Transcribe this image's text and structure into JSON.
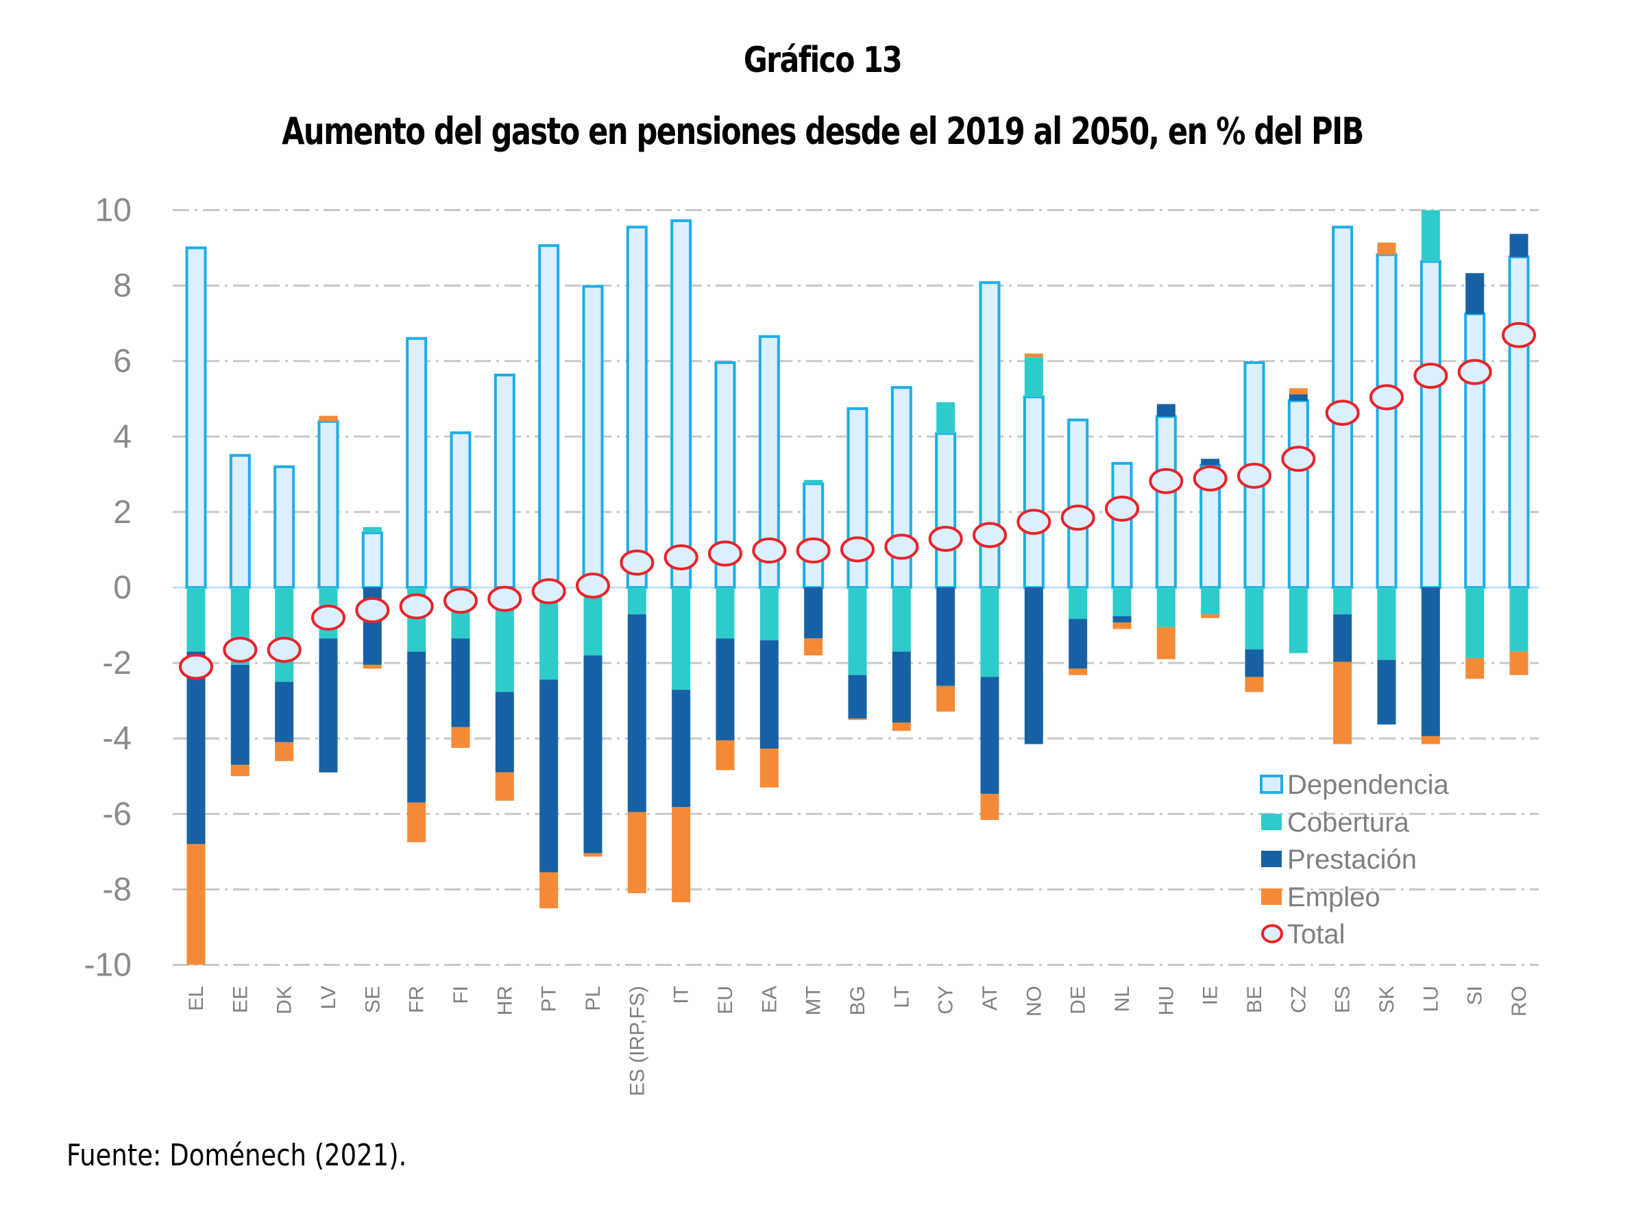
{
  "figure": {
    "label": "Gráfico 13",
    "title": "Aumento del gasto en pensiones desde el 2019 al 2050, en % del PIB",
    "source": "Fuente: Doménech (2021)."
  },
  "colors": {
    "dependencia_fill": "#dcefff",
    "dependencia_stroke": "#1aaee8",
    "cobertura": "#2ecbcb",
    "prestacion": "#1762a5",
    "empleo": "#f58a36",
    "total_stroke": "#e8232a",
    "total_fill": "#dcefff",
    "grid": "#c8c8c8",
    "zero_line": "#bfe0fb"
  },
  "chart_data": {
    "type": "bar",
    "stacked": true,
    "title": "Aumento del gasto en pensiones desde el 2019 al 2050, en % del PIB",
    "xlabel": "",
    "ylabel": "",
    "ylim": [
      -10,
      10
    ],
    "yticks": [
      10,
      8,
      6,
      4,
      2,
      0,
      -2,
      -4,
      -6,
      -8,
      -10
    ],
    "grid": true,
    "legend_position": "bottom-right",
    "categories": [
      "EL",
      "EE",
      "DK",
      "LV",
      "SE",
      "FR",
      "FI",
      "HR",
      "PT",
      "PL",
      "ES (IRP,FS)",
      "IT",
      "EU",
      "EA",
      "MT",
      "BG",
      "LT",
      "CY",
      "AT",
      "NO",
      "DE",
      "NL",
      "HU",
      "IE",
      "BE",
      "CZ",
      "ES",
      "SK",
      "LU",
      "SI",
      "RO"
    ],
    "series": [
      {
        "name": "Dependencia",
        "kind": "bar",
        "values": [
          9.0,
          3.5,
          3.2,
          4.4,
          1.45,
          6.6,
          4.1,
          5.63,
          9.06,
          7.98,
          9.55,
          9.72,
          5.96,
          6.65,
          2.75,
          4.74,
          5.3,
          4.08,
          8.08,
          5.05,
          4.44,
          3.29,
          4.53,
          3.24,
          5.96,
          4.95,
          9.55,
          8.82,
          8.64,
          7.25,
          8.76
        ]
      },
      {
        "name": "Cobertura",
        "kind": "bar",
        "values": [
          -1.7,
          -2.05,
          -2.5,
          -1.35,
          0.15,
          -1.7,
          -1.35,
          -2.77,
          -2.44,
          -1.8,
          -0.71,
          -2.71,
          -1.35,
          -1.4,
          0.1,
          -2.32,
          -1.7,
          0.83,
          -2.37,
          1.05,
          -0.83,
          -0.76,
          -1.05,
          -0.71,
          -1.64,
          -1.74,
          -0.71,
          -1.92,
          1.36,
          -1.87,
          -1.7
        ]
      },
      {
        "name": "Prestación",
        "kind": "bar",
        "values": [
          -5.1,
          -2.65,
          -1.6,
          -3.55,
          -2.05,
          -4.0,
          -2.35,
          -2.13,
          -5.11,
          -5.24,
          -5.24,
          -3.11,
          -2.7,
          -2.87,
          -1.35,
          -1.15,
          -1.88,
          -2.61,
          -3.1,
          -4.15,
          -1.32,
          -0.17,
          0.33,
          0.17,
          -0.73,
          0.17,
          -1.26,
          -1.71,
          -3.94,
          1.08,
          0.61
        ]
      },
      {
        "name": "Empleo",
        "kind": "bar",
        "values": [
          -3.3,
          -0.3,
          -0.5,
          0.15,
          -0.1,
          -1.05,
          -0.55,
          -0.75,
          -0.95,
          -0.09,
          -2.15,
          -2.52,
          -0.79,
          -1.03,
          -0.45,
          -0.04,
          -0.22,
          -0.68,
          -0.69,
          0.1,
          -0.17,
          -0.17,
          -0.85,
          -0.1,
          -0.4,
          0.16,
          -2.18,
          0.32,
          -0.21,
          -0.55,
          -0.62
        ]
      },
      {
        "name": "Total",
        "kind": "marker",
        "values": [
          -2.1,
          -1.65,
          -1.65,
          -0.8,
          -0.6,
          -0.5,
          -0.35,
          -0.3,
          -0.1,
          0.05,
          0.66,
          0.8,
          0.9,
          0.98,
          0.98,
          1.01,
          1.08,
          1.29,
          1.39,
          1.74,
          1.85,
          2.09,
          2.82,
          2.89,
          2.96,
          3.41,
          4.63,
          5.04,
          5.61,
          5.71,
          6.69
        ]
      }
    ]
  }
}
